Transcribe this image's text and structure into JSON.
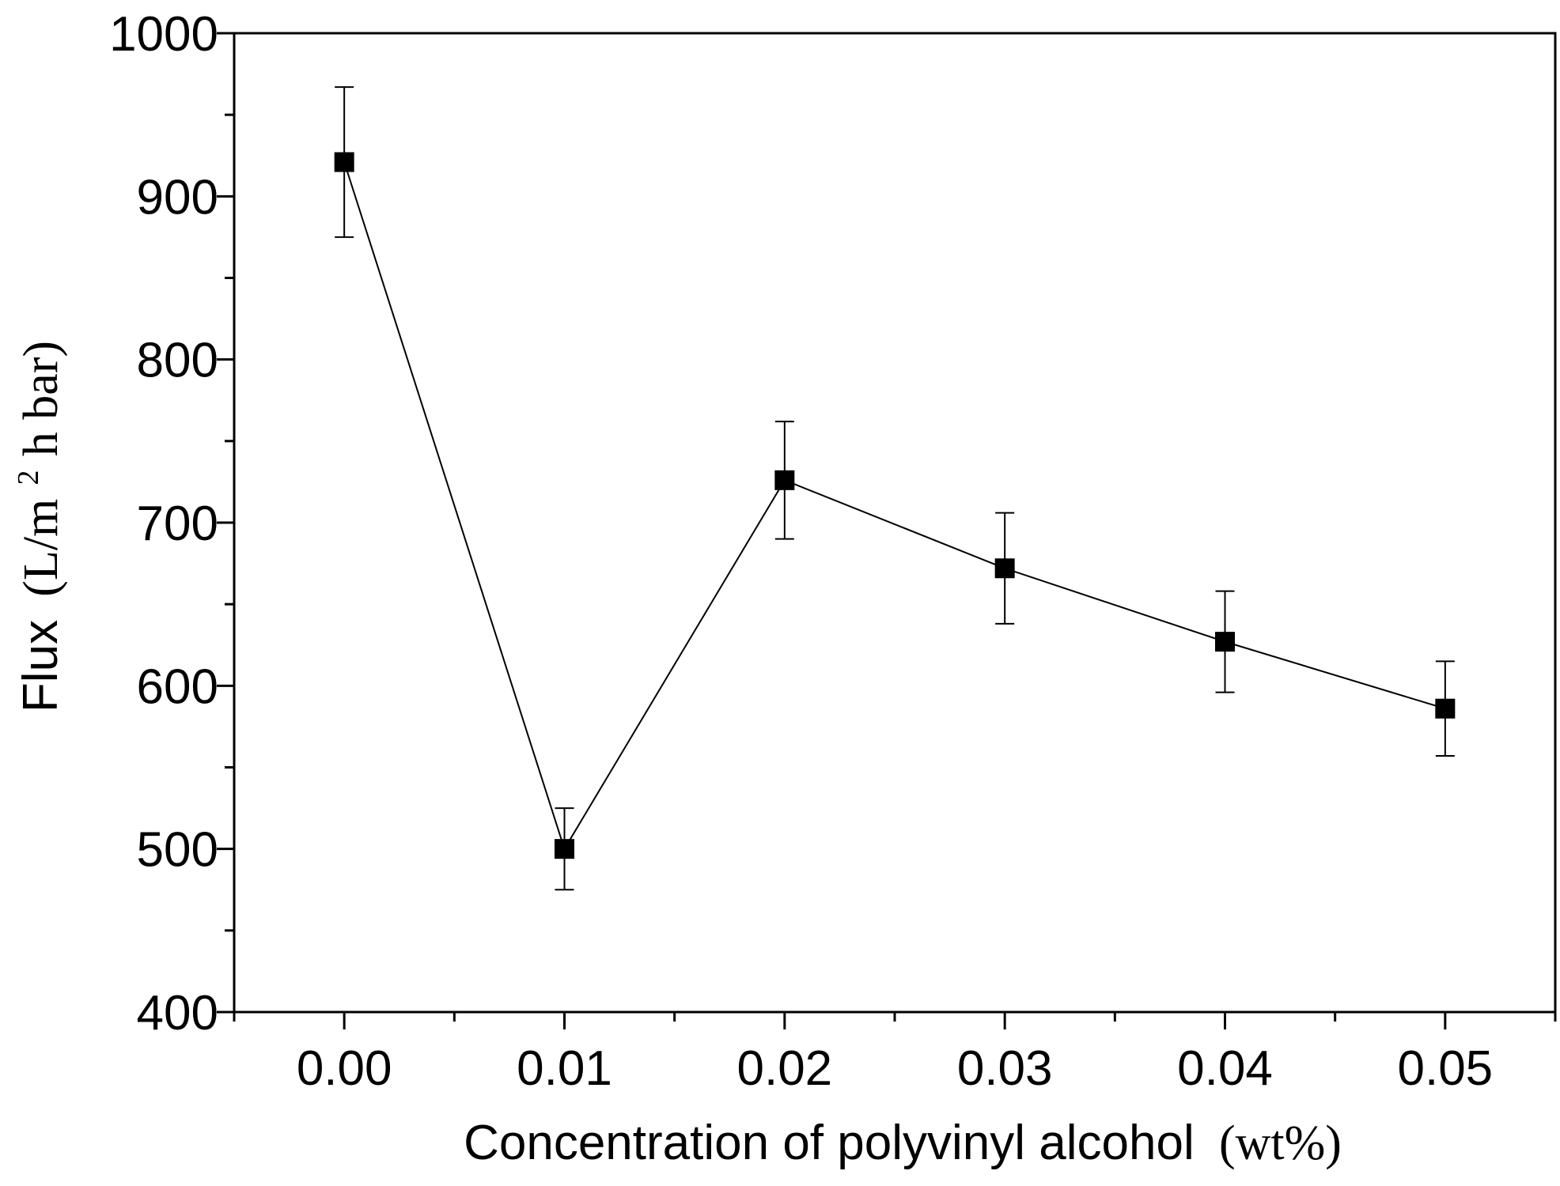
{
  "chart_data": {
    "type": "line",
    "title": "",
    "xlabel": {
      "main": "Concentration of polyvinyl alcohol",
      "unit": "(wt%)"
    },
    "ylabel": {
      "main": "Flux",
      "unit_prefix": "(L/m",
      "unit_superscript": "2",
      "unit_suffix": " h bar)"
    },
    "xlim": [
      -0.005,
      0.055
    ],
    "ylim": [
      400,
      1000
    ],
    "x_ticks": [
      0.0,
      0.01,
      0.02,
      0.03,
      0.04,
      0.05
    ],
    "x_tick_labels": [
      "0.00",
      "0.01",
      "0.02",
      "0.03",
      "0.04",
      "0.05"
    ],
    "x_minor_ticks": [
      -0.005,
      0.005,
      0.015,
      0.025,
      0.035,
      0.045,
      0.055
    ],
    "y_ticks": [
      400,
      500,
      600,
      700,
      800,
      900,
      1000
    ],
    "y_tick_labels": [
      "400",
      "500",
      "600",
      "700",
      "800",
      "900",
      "1000"
    ],
    "y_minor_ticks": [
      450,
      550,
      650,
      750,
      850,
      950
    ],
    "grid": false,
    "series": [
      {
        "name": "Flux",
        "marker": "square",
        "color": "#000000",
        "x": [
          0.0,
          0.01,
          0.02,
          0.03,
          0.04,
          0.05
        ],
        "y": [
          921,
          500,
          726,
          672,
          627,
          586
        ],
        "error": [
          46,
          25,
          36,
          34,
          31,
          29
        ]
      }
    ]
  }
}
